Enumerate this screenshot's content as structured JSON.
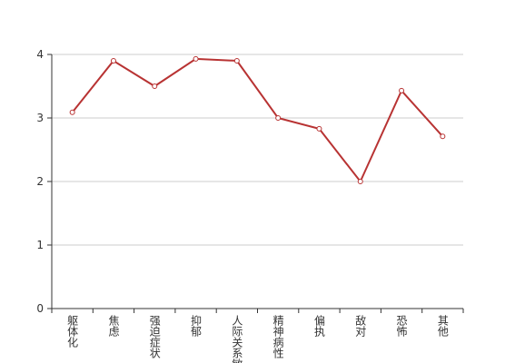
{
  "chart_data": {
    "type": "line",
    "categories": [
      "躯体化",
      "焦虑",
      "强迫症状",
      "抑郁",
      "人际关系敏感",
      "精神病性",
      "偏执",
      "敌对",
      "恐怖",
      "其他"
    ],
    "series": [
      {
        "color": "#b83333",
        "values": [
          3.09,
          3.9,
          3.5,
          3.93,
          3.9,
          3.0,
          2.83,
          2.0,
          3.43,
          2.71
        ]
      }
    ],
    "ylim": [
      0,
      4
    ],
    "yticks": [
      0,
      1,
      2,
      3,
      4
    ],
    "grid": true
  }
}
